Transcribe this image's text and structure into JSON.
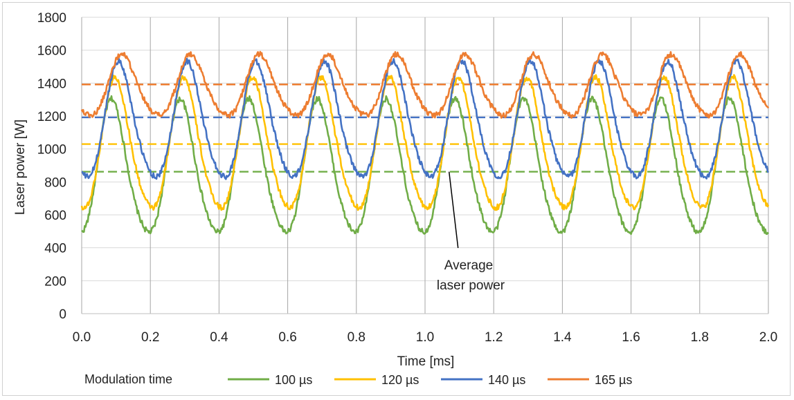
{
  "chart_data": {
    "type": "line",
    "title": "",
    "xlabel": "Time [ms]",
    "ylabel": "Laser power [W]",
    "xlim": [
      0.0,
      2.0
    ],
    "ylim": [
      0,
      1800
    ],
    "x_ticks": [
      0.0,
      0.2,
      0.4,
      0.6,
      0.8,
      1.0,
      1.2,
      1.4,
      1.6,
      1.8,
      2.0
    ],
    "x_tick_labels": [
      "0.0",
      "0.2",
      "0.4",
      "0.6",
      "0.8",
      "1.0",
      "1.2",
      "1.4",
      "1.6",
      "1.8",
      "2.0"
    ],
    "y_ticks": [
      0,
      200,
      400,
      600,
      800,
      1000,
      1200,
      1400,
      1600,
      1800
    ],
    "y_tick_labels": [
      "0",
      "200",
      "400",
      "600",
      "800",
      "1000",
      "1200",
      "1400",
      "1600",
      "1800"
    ],
    "grid": true,
    "legend": {
      "title": "Modulation time",
      "position": "bottom"
    },
    "series": [
      {
        "name": "100 µs",
        "color": "#70ad47",
        "period_ms": 0.2,
        "peak_time_ms": 0.09,
        "min": 430,
        "max": 1295,
        "average": 862
      },
      {
        "name": "120 µs",
        "color": "#ffc000",
        "period_ms": 0.2,
        "peak_time_ms": 0.1,
        "min": 580,
        "max": 1425,
        "average": 1030
      },
      {
        "name": "140 µs",
        "color": "#4472c4",
        "period_ms": 0.2,
        "peak_time_ms": 0.11,
        "min": 775,
        "max": 1525,
        "average": 1192
      },
      {
        "name": "165 µs",
        "color": "#ed7d31",
        "period_ms": 0.2,
        "peak_time_ms": 0.12,
        "min": 1175,
        "max": 1570,
        "average": 1392
      }
    ],
    "annotation": {
      "lines": [
        "Average",
        "laser power"
      ],
      "points_to_x": 1.07,
      "points_to_y": 862
    }
  }
}
